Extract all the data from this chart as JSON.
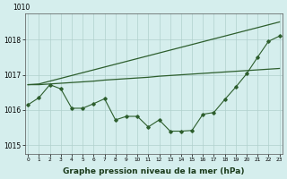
{
  "xlabel": "Graphe pression niveau de la mer (hPa)",
  "hours": [
    0,
    1,
    2,
    3,
    4,
    5,
    6,
    7,
    8,
    9,
    10,
    11,
    12,
    13,
    14,
    15,
    16,
    17,
    18,
    19,
    20,
    21,
    22,
    23
  ],
  "smooth_flat": [
    1016.72,
    1016.72,
    1016.74,
    1016.76,
    1016.78,
    1016.8,
    1016.82,
    1016.85,
    1016.87,
    1016.89,
    1016.91,
    1016.93,
    1016.96,
    1016.98,
    1017.0,
    1017.02,
    1017.04,
    1017.06,
    1017.08,
    1017.1,
    1017.12,
    1017.14,
    1017.16,
    1017.18
  ],
  "smooth_rising": [
    1016.72,
    1016.74,
    1016.82,
    1016.9,
    1016.98,
    1017.06,
    1017.14,
    1017.22,
    1017.3,
    1017.38,
    1017.46,
    1017.54,
    1017.62,
    1017.7,
    1017.78,
    1017.86,
    1017.94,
    1018.02,
    1018.1,
    1018.18,
    1018.26,
    1018.34,
    1018.42,
    1018.5
  ],
  "jagged_line": [
    1016.15,
    1016.35,
    1016.72,
    1016.6,
    1016.05,
    1016.05,
    1016.18,
    1016.32,
    1015.72,
    1015.82,
    1015.82,
    1015.52,
    1015.72,
    1015.4,
    1015.4,
    1015.42,
    1015.88,
    1015.93,
    1016.3,
    1016.65,
    1017.03,
    1017.5,
    1017.95,
    1018.1
  ],
  "bg_color": "#d5eeed",
  "line_color": "#2d5e2d",
  "grid_color": "#b0d0cc",
  "ylim_min": 1014.75,
  "ylim_max": 1018.75,
  "yticks": [
    1015,
    1016,
    1017,
    1018
  ],
  "xticks": [
    0,
    1,
    2,
    3,
    4,
    5,
    6,
    7,
    8,
    9,
    10,
    11,
    12,
    13,
    14,
    15,
    16,
    17,
    18,
    19,
    20,
    21,
    22,
    23
  ],
  "top_label": "1010",
  "xlabel_fontsize": 6.5,
  "tick_fontsize": 5.5
}
